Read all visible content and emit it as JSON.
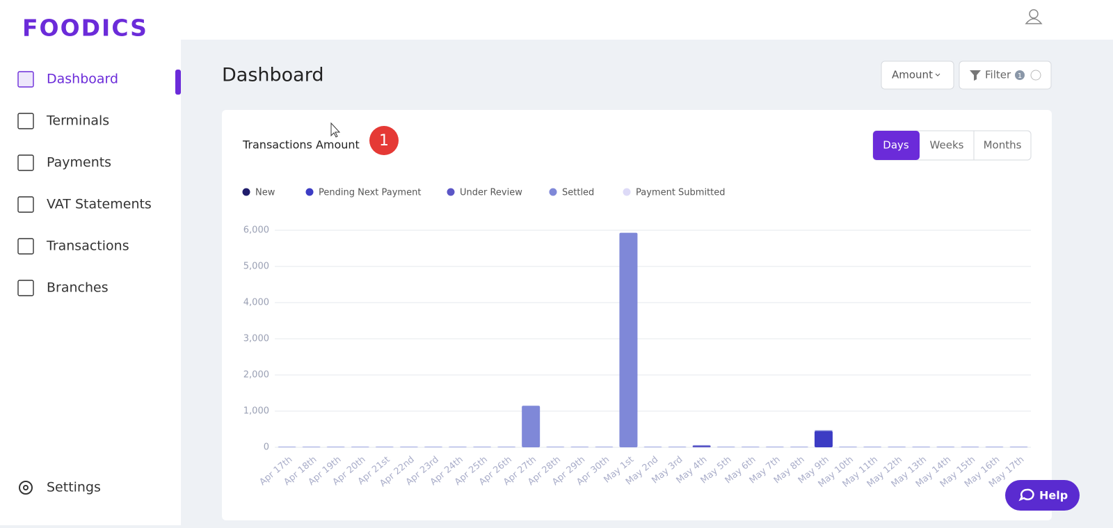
{
  "logo": "FOODICS",
  "nav": [
    "Dashboard",
    "Terminals",
    "Payments",
    "VAT Statements",
    "Transactions",
    "Branches"
  ],
  "settings": "Settings",
  "page_title": "Dashboard",
  "controls": {
    "amount": "Amount",
    "filter": "Filter",
    "filter_count": 1
  },
  "step_marker": 1,
  "tabs": [
    "Days",
    "Weeks",
    "Months"
  ],
  "help": "Help",
  "chart_data": {
    "type": "bar",
    "stacked": true,
    "title": "Transactions Amount",
    "categories": [
      "Apr 17th",
      "Apr 18th",
      "Apr 19th",
      "Apr 20th",
      "Apr 21st",
      "Apr 22nd",
      "Apr 23rd",
      "Apr 24th",
      "Apr 25th",
      "Apr 26th",
      "Apr 27th",
      "Apr 28th",
      "Apr 29th",
      "Apr 30th",
      "May 1st",
      "May 2nd",
      "May 3rd",
      "May 4th",
      "May 5th",
      "May 6th",
      "May 7th",
      "May 8th",
      "May 9th",
      "May 10th",
      "May 11th",
      "May 12th",
      "May 13th",
      "May 14th",
      "May 15th",
      "May 16th",
      "May 17th"
    ],
    "series": [
      {
        "name": "New",
        "color": "#1f1c6b",
        "values": [
          0,
          0,
          0,
          0,
          0,
          0,
          0,
          0,
          0,
          0,
          0,
          0,
          0,
          0,
          0,
          0,
          0,
          0,
          0,
          0,
          0,
          0,
          0,
          0,
          0,
          0,
          0,
          0,
          0,
          0,
          0
        ]
      },
      {
        "name": "Pending Next Payment",
        "color": "#3c3cc4",
        "values": [
          0,
          0,
          0,
          0,
          0,
          0,
          0,
          0,
          0,
          0,
          0,
          0,
          0,
          0,
          0,
          0,
          0,
          0,
          0,
          0,
          0,
          0,
          450,
          0,
          0,
          0,
          0,
          0,
          0,
          0,
          0
        ]
      },
      {
        "name": "Under Review",
        "color": "#5b56c6",
        "values": [
          0,
          0,
          0,
          0,
          0,
          0,
          0,
          0,
          0,
          0,
          0,
          0,
          0,
          0,
          0,
          0,
          0,
          45,
          0,
          0,
          0,
          0,
          0,
          0,
          0,
          0,
          0,
          0,
          0,
          0,
          0
        ]
      },
      {
        "name": "Settled",
        "color": "#7f88d8",
        "values": [
          15,
          15,
          15,
          15,
          15,
          15,
          15,
          15,
          15,
          15,
          1150,
          15,
          15,
          15,
          5930,
          15,
          15,
          15,
          15,
          15,
          15,
          15,
          20,
          15,
          15,
          15,
          15,
          15,
          15,
          15,
          15
        ]
      },
      {
        "name": "Payment Submitted",
        "color": "#dddaf7",
        "values": [
          0,
          0,
          0,
          0,
          0,
          0,
          0,
          0,
          0,
          0,
          0,
          0,
          0,
          0,
          0,
          0,
          0,
          0,
          0,
          0,
          0,
          0,
          0,
          0,
          0,
          0,
          0,
          0,
          0,
          0,
          0
        ]
      }
    ],
    "ylim": [
      0,
      6000
    ],
    "yticks": [
      0,
      {
        "value": 1000,
        "label": "1,000"
      },
      {
        "value": 2000,
        "label": "2,000"
      },
      {
        "value": 3000,
        "label": "3,000"
      },
      {
        "value": 4000,
        "label": "4,000"
      },
      {
        "value": 5000,
        "label": "5,000"
      },
      {
        "value": 6000,
        "label": "6,000"
      }
    ],
    "grid": true
  }
}
